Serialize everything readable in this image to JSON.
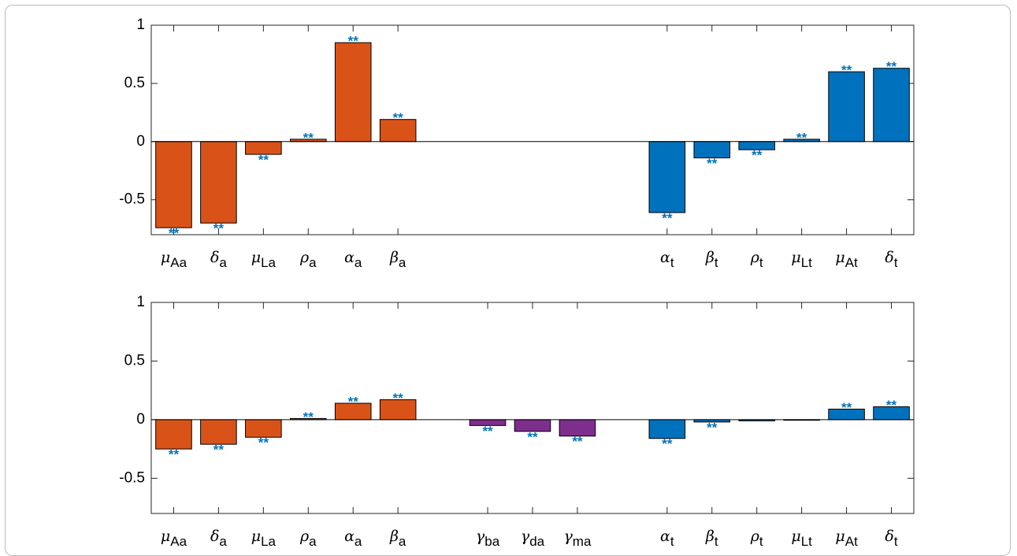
{
  "chart_data": [
    {
      "type": "bar",
      "categories": [
        "μAa",
        "δa",
        "μLa",
        "ρa",
        "αa",
        "βa",
        null,
        null,
        null,
        null,
        null,
        "αt",
        "βt",
        "ρt",
        "μLt",
        "μAt",
        "δt"
      ],
      "values": [
        -0.74,
        -0.7,
        -0.11,
        0.02,
        0.85,
        0.19,
        null,
        null,
        null,
        null,
        null,
        -0.61,
        -0.14,
        -0.07,
        0.02,
        0.6,
        0.63
      ],
      "colors": [
        "#d95319",
        "#d95319",
        "#d95319",
        "#d95319",
        "#d95319",
        "#d95319",
        null,
        null,
        null,
        null,
        null,
        "#0072bd",
        "#0072bd",
        "#0072bd",
        "#0072bd",
        "#0072bd",
        "#0072bd"
      ],
      "annotations": [
        "**",
        "**",
        "**",
        "**",
        "**",
        "**",
        null,
        null,
        null,
        null,
        null,
        "**",
        "**",
        "**",
        "**",
        "**",
        "**"
      ],
      "annotation_color": "#0072bd",
      "ylim": [
        -0.8,
        1
      ],
      "yticks": [
        -0.5,
        0,
        0.5,
        1
      ]
    },
    {
      "type": "bar",
      "categories": [
        "μAa",
        "δa",
        "μLa",
        "ρa",
        "αa",
        "βa",
        null,
        "γba",
        "γda",
        "γma",
        null,
        "αt",
        "βt",
        "ρt",
        "μLt",
        "μAt",
        "δt"
      ],
      "values": [
        -0.25,
        -0.21,
        -0.15,
        0.01,
        0.14,
        0.17,
        null,
        -0.05,
        -0.1,
        -0.14,
        null,
        -0.16,
        -0.02,
        -0.01,
        -0.005,
        0.09,
        0.11
      ],
      "colors": [
        "#d95319",
        "#d95319",
        "#d95319",
        "#d95319",
        "#d95319",
        "#d95319",
        null,
        "#7e2f8e",
        "#7e2f8e",
        "#7e2f8e",
        null,
        "#0072bd",
        "#0072bd",
        "#0072bd",
        "#0072bd",
        "#0072bd",
        "#0072bd"
      ],
      "annotations": [
        "**",
        "**",
        "**",
        "**",
        "**",
        "**",
        null,
        "**",
        "**",
        "**",
        null,
        "**",
        "**",
        null,
        null,
        "**",
        "**"
      ],
      "annotation_color": "#0072bd",
      "ylim": [
        -0.8,
        1
      ],
      "yticks": [
        -0.5,
        0,
        0.5,
        1
      ]
    }
  ]
}
